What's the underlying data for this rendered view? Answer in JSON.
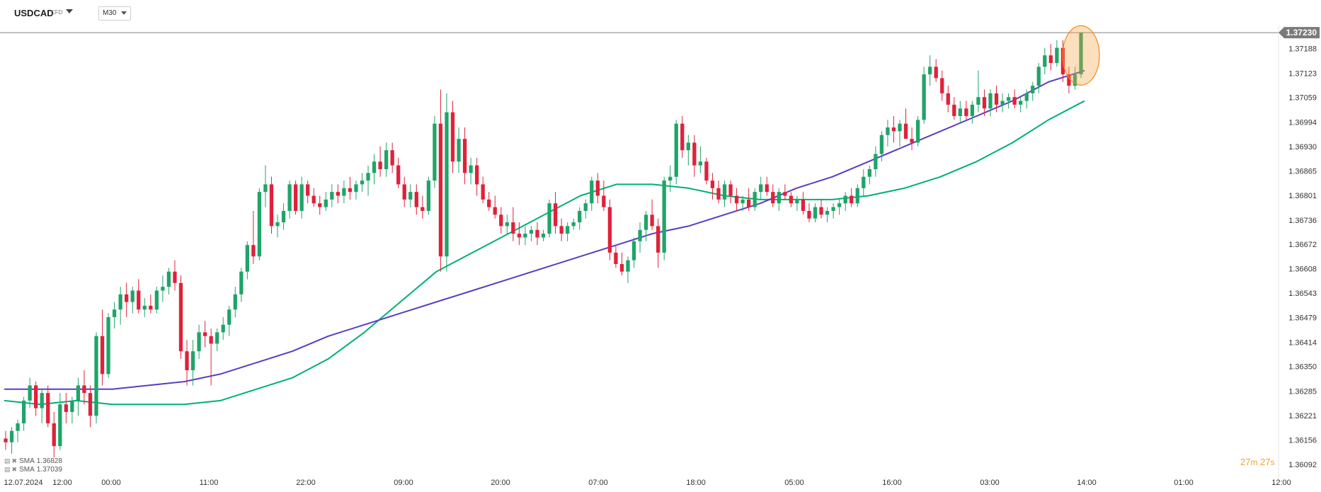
{
  "header": {
    "symbol": "USDCAD",
    "instrument_type": "CFD",
    "timeframe": "M30"
  },
  "current_price_label": "1.37230",
  "indicators": [
    {
      "name": "SMA",
      "value": "1.36828",
      "color": "#00b074"
    },
    {
      "name": "SMA",
      "value": "1.37039",
      "color": "#5b3cc4"
    }
  ],
  "countdown": {
    "minutes": "27",
    "minutes_unit": "m",
    "seconds": "27",
    "seconds_unit": "s"
  },
  "colors": {
    "up": "#1fa469",
    "down": "#e0213a",
    "sma_fast": "#00b074",
    "sma_slow": "#5b3cc4",
    "price_label_bg": "#7a7a7a",
    "highlight": "#f7a440"
  },
  "chart_data": {
    "type": "candlestick",
    "timeframe": "M30",
    "y_ticks": [
      "1.37188",
      "1.37123",
      "1.37059",
      "1.36994",
      "1.36930",
      "1.36865",
      "1.36801",
      "1.36736",
      "1.36672",
      "1.36608",
      "1.36543",
      "1.36479",
      "1.36414",
      "1.36350",
      "1.36285",
      "1.36221",
      "1.36156",
      "1.36092"
    ],
    "x_ticks": [
      "12.07.2024",
      "12:00",
      "00:00",
      "11:00",
      "22:00",
      "09:00",
      "20:00",
      "07:00",
      "18:00",
      "05:00",
      "16:00",
      "03:00",
      "14:00",
      "01:00",
      "12:00"
    ],
    "ylim": [
      1.36075,
      1.3726
    ],
    "current_price": 1.3723,
    "series": [
      {
        "name": "SMA",
        "type": "line",
        "values": [
          1.3626,
          1.3625,
          1.3626,
          1.3625,
          1.3625,
          1.3625,
          1.3626,
          1.3629,
          1.3632,
          1.3637,
          1.3644,
          1.3652,
          1.366,
          1.3665,
          1.367,
          1.3675,
          1.368,
          1.3683,
          1.3683,
          1.3682,
          1.368,
          1.3679,
          1.3679,
          1.3679,
          1.368,
          1.3682,
          1.3685,
          1.3689,
          1.3694,
          1.37,
          1.3705
        ]
      },
      {
        "name": "SMA",
        "type": "line",
        "values": [
          1.3629,
          1.3629,
          1.3629,
          1.3629,
          1.363,
          1.3631,
          1.3633,
          1.3636,
          1.3639,
          1.3643,
          1.3646,
          1.3649,
          1.3652,
          1.3655,
          1.3658,
          1.3661,
          1.3664,
          1.3667,
          1.367,
          1.3672,
          1.3675,
          1.3678,
          1.3682,
          1.3685,
          1.3689,
          1.3693,
          1.3697,
          1.3701,
          1.3705,
          1.371,
          1.3713
        ]
      }
    ],
    "candles": [
      [
        1.3616,
        1.3618,
        1.3613,
        1.3615
      ],
      [
        1.3615,
        1.3619,
        1.3612,
        1.3618
      ],
      [
        1.3618,
        1.3621,
        1.3615,
        1.362
      ],
      [
        1.362,
        1.3627,
        1.3618,
        1.3626
      ],
      [
        1.3626,
        1.3632,
        1.3624,
        1.363
      ],
      [
        1.363,
        1.3631,
        1.3622,
        1.3624
      ],
      [
        1.3624,
        1.3629,
        1.362,
        1.3628
      ],
      [
        1.3628,
        1.363,
        1.3619,
        1.362
      ],
      [
        1.362,
        1.3623,
        1.3611,
        1.3614
      ],
      [
        1.3614,
        1.3628,
        1.3613,
        1.3625
      ],
      [
        1.3625,
        1.3628,
        1.362,
        1.3623
      ],
      [
        1.3623,
        1.3627,
        1.362,
        1.3626
      ],
      [
        1.3626,
        1.3632,
        1.3622,
        1.363
      ],
      [
        1.363,
        1.3634,
        1.3625,
        1.3628
      ],
      [
        1.3628,
        1.363,
        1.3619,
        1.3622
      ],
      [
        1.3622,
        1.3644,
        1.362,
        1.3643
      ],
      [
        1.3643,
        1.365,
        1.363,
        1.3633
      ],
      [
        1.3633,
        1.3649,
        1.3632,
        1.3648
      ],
      [
        1.3648,
        1.3652,
        1.3645,
        1.365
      ],
      [
        1.365,
        1.3656,
        1.3646,
        1.3654
      ],
      [
        1.3654,
        1.3657,
        1.3648,
        1.3652
      ],
      [
        1.3652,
        1.3656,
        1.3649,
        1.3655
      ],
      [
        1.3655,
        1.3658,
        1.3649,
        1.365
      ],
      [
        1.365,
        1.3653,
        1.3648,
        1.3651
      ],
      [
        1.3651,
        1.3654,
        1.3649,
        1.365
      ],
      [
        1.365,
        1.3656,
        1.3649,
        1.3655
      ],
      [
        1.3655,
        1.3659,
        1.3652,
        1.3656
      ],
      [
        1.3656,
        1.3661,
        1.3654,
        1.366
      ],
      [
        1.366,
        1.3663,
        1.3655,
        1.3657
      ],
      [
        1.3657,
        1.3659,
        1.3637,
        1.3639
      ],
      [
        1.3639,
        1.3642,
        1.363,
        1.3634
      ],
      [
        1.3634,
        1.3642,
        1.363,
        1.3639
      ],
      [
        1.3639,
        1.3646,
        1.3637,
        1.3644
      ],
      [
        1.3644,
        1.3647,
        1.364,
        1.3643
      ],
      [
        1.3643,
        1.3645,
        1.363,
        1.3641
      ],
      [
        1.3641,
        1.3645,
        1.3639,
        1.3644
      ],
      [
        1.3644,
        1.3648,
        1.3642,
        1.3646
      ],
      [
        1.3646,
        1.3651,
        1.3643,
        1.365
      ],
      [
        1.365,
        1.3656,
        1.3648,
        1.3654
      ],
      [
        1.3654,
        1.3661,
        1.3652,
        1.366
      ],
      [
        1.366,
        1.3668,
        1.3658,
        1.3667
      ],
      [
        1.3667,
        1.3676,
        1.3662,
        1.3664
      ],
      [
        1.3664,
        1.3682,
        1.3663,
        1.3681
      ],
      [
        1.3681,
        1.3688,
        1.3677,
        1.3683
      ],
      [
        1.3683,
        1.3685,
        1.367,
        1.3672
      ],
      [
        1.3672,
        1.3675,
        1.3669,
        1.3673
      ],
      [
        1.3673,
        1.3678,
        1.3671,
        1.3676
      ],
      [
        1.3676,
        1.3684,
        1.3674,
        1.3683
      ],
      [
        1.3683,
        1.3684,
        1.3675,
        1.3676
      ],
      [
        1.3676,
        1.3685,
        1.3674,
        1.3683
      ],
      [
        1.3683,
        1.3684,
        1.3678,
        1.368
      ],
      [
        1.368,
        1.3682,
        1.3677,
        1.3678
      ],
      [
        1.3678,
        1.368,
        1.3675,
        1.3677
      ],
      [
        1.3677,
        1.3681,
        1.3676,
        1.3679
      ],
      [
        1.3679,
        1.3683,
        1.3677,
        1.3681
      ],
      [
        1.3681,
        1.3683,
        1.3678,
        1.368
      ],
      [
        1.368,
        1.3684,
        1.3678,
        1.3682
      ],
      [
        1.3682,
        1.3685,
        1.3679,
        1.3681
      ],
      [
        1.3681,
        1.3684,
        1.3679,
        1.3683
      ],
      [
        1.3683,
        1.3686,
        1.3681,
        1.3684
      ],
      [
        1.3684,
        1.3688,
        1.368,
        1.3686
      ],
      [
        1.3686,
        1.3691,
        1.3683,
        1.3689
      ],
      [
        1.3689,
        1.3693,
        1.3685,
        1.3687
      ],
      [
        1.3687,
        1.3694,
        1.3685,
        1.3692
      ],
      [
        1.3692,
        1.3694,
        1.3686,
        1.3688
      ],
      [
        1.3688,
        1.369,
        1.3682,
        1.3683
      ],
      [
        1.3683,
        1.3685,
        1.3677,
        1.3679
      ],
      [
        1.3679,
        1.3683,
        1.3677,
        1.3681
      ],
      [
        1.3681,
        1.3683,
        1.3675,
        1.3677
      ],
      [
        1.3677,
        1.368,
        1.3674,
        1.3676
      ],
      [
        1.3676,
        1.3685,
        1.3675,
        1.3684
      ],
      [
        1.3684,
        1.3701,
        1.3682,
        1.3699
      ],
      [
        1.3699,
        1.3708,
        1.366,
        1.3664
      ],
      [
        1.3664,
        1.3707,
        1.366,
        1.3702
      ],
      [
        1.3702,
        1.3705,
        1.3686,
        1.3689
      ],
      [
        1.3689,
        1.3698,
        1.3686,
        1.3695
      ],
      [
        1.3695,
        1.3698,
        1.3683,
        1.3686
      ],
      [
        1.3686,
        1.369,
        1.3683,
        1.3688
      ],
      [
        1.3688,
        1.369,
        1.368,
        1.3683
      ],
      [
        1.3683,
        1.3685,
        1.3678,
        1.3679
      ],
      [
        1.3679,
        1.3681,
        1.3676,
        1.3677
      ],
      [
        1.3677,
        1.368,
        1.3674,
        1.3675
      ],
      [
        1.3675,
        1.3677,
        1.367,
        1.3672
      ],
      [
        1.3672,
        1.3675,
        1.367,
        1.3673
      ],
      [
        1.3673,
        1.3677,
        1.3668,
        1.367
      ],
      [
        1.367,
        1.3673,
        1.3667,
        1.3669
      ],
      [
        1.3669,
        1.3672,
        1.3667,
        1.367
      ],
      [
        1.367,
        1.3672,
        1.3668,
        1.3671
      ],
      [
        1.3671,
        1.3673,
        1.3667,
        1.3669
      ],
      [
        1.3669,
        1.3671,
        1.3668,
        1.367
      ],
      [
        1.367,
        1.3679,
        1.3669,
        1.3678
      ],
      [
        1.3678,
        1.3681,
        1.367,
        1.3672
      ],
      [
        1.3672,
        1.3674,
        1.3668,
        1.367
      ],
      [
        1.367,
        1.3673,
        1.3668,
        1.3672
      ],
      [
        1.3672,
        1.3674,
        1.3671,
        1.3673
      ],
      [
        1.3673,
        1.3677,
        1.3671,
        1.3676
      ],
      [
        1.3676,
        1.3679,
        1.3674,
        1.3678
      ],
      [
        1.3678,
        1.3685,
        1.3676,
        1.3684
      ],
      [
        1.3684,
        1.3686,
        1.3678,
        1.368
      ],
      [
        1.368,
        1.3684,
        1.3676,
        1.3677
      ],
      [
        1.3677,
        1.3679,
        1.3663,
        1.3665
      ],
      [
        1.3665,
        1.3667,
        1.3661,
        1.3662
      ],
      [
        1.3662,
        1.3665,
        1.3659,
        1.366
      ],
      [
        1.366,
        1.3664,
        1.3657,
        1.3663
      ],
      [
        1.3663,
        1.3669,
        1.3661,
        1.3668
      ],
      [
        1.3668,
        1.3673,
        1.3665,
        1.3671
      ],
      [
        1.3671,
        1.3676,
        1.3668,
        1.3675
      ],
      [
        1.3675,
        1.3679,
        1.3671,
        1.3672
      ],
      [
        1.3672,
        1.3674,
        1.3661,
        1.3665
      ],
      [
        1.3665,
        1.3685,
        1.3663,
        1.3684
      ],
      [
        1.3684,
        1.3688,
        1.3681,
        1.3685
      ],
      [
        1.3685,
        1.37,
        1.3683,
        1.3699
      ],
      [
        1.3699,
        1.3701,
        1.369,
        1.3692
      ],
      [
        1.3692,
        1.3696,
        1.3688,
        1.3694
      ],
      [
        1.3694,
        1.3696,
        1.3685,
        1.3688
      ],
      [
        1.3688,
        1.3693,
        1.3686,
        1.3689
      ],
      [
        1.3689,
        1.369,
        1.3683,
        1.3684
      ],
      [
        1.3684,
        1.3686,
        1.3679,
        1.3682
      ],
      [
        1.3682,
        1.3684,
        1.3678,
        1.3679
      ],
      [
        1.3679,
        1.3684,
        1.3677,
        1.3683
      ],
      [
        1.3683,
        1.3684,
        1.3678,
        1.368
      ],
      [
        1.368,
        1.3682,
        1.3676,
        1.3678
      ],
      [
        1.3678,
        1.368,
        1.3676,
        1.3679
      ],
      [
        1.3679,
        1.3682,
        1.3676,
        1.3677
      ],
      [
        1.3677,
        1.3682,
        1.3676,
        1.3681
      ],
      [
        1.3681,
        1.3685,
        1.3679,
        1.3683
      ],
      [
        1.3683,
        1.3685,
        1.368,
        1.3681
      ],
      [
        1.3681,
        1.3683,
        1.3677,
        1.3678
      ],
      [
        1.3678,
        1.3682,
        1.3676,
        1.3681
      ],
      [
        1.3681,
        1.3683,
        1.3679,
        1.368
      ],
      [
        1.368,
        1.3681,
        1.3677,
        1.3678
      ],
      [
        1.3678,
        1.368,
        1.3676,
        1.3679
      ],
      [
        1.3679,
        1.3681,
        1.3675,
        1.3676
      ],
      [
        1.3676,
        1.3678,
        1.3673,
        1.3674
      ],
      [
        1.3674,
        1.3678,
        1.3673,
        1.3677
      ],
      [
        1.3677,
        1.3679,
        1.3674,
        1.3675
      ],
      [
        1.3675,
        1.3677,
        1.3673,
        1.3676
      ],
      [
        1.3676,
        1.3678,
        1.3674,
        1.3677
      ],
      [
        1.3677,
        1.3679,
        1.3675,
        1.3678
      ],
      [
        1.3678,
        1.3681,
        1.3676,
        1.368
      ],
      [
        1.368,
        1.3682,
        1.3677,
        1.3678
      ],
      [
        1.3678,
        1.3683,
        1.3677,
        1.3682
      ],
      [
        1.3682,
        1.3687,
        1.368,
        1.3685
      ],
      [
        1.3685,
        1.3688,
        1.3683,
        1.3687
      ],
      [
        1.3687,
        1.3693,
        1.3685,
        1.3691
      ],
      [
        1.3691,
        1.3697,
        1.3689,
        1.3696
      ],
      [
        1.3696,
        1.37,
        1.3693,
        1.3698
      ],
      [
        1.3698,
        1.3701,
        1.3694,
        1.3697
      ],
      [
        1.3697,
        1.37,
        1.3693,
        1.3699
      ],
      [
        1.3699,
        1.3703,
        1.3696,
        1.3695
      ],
      [
        1.3695,
        1.3698,
        1.3692,
        1.3694
      ],
      [
        1.3694,
        1.3701,
        1.3693,
        1.37
      ],
      [
        1.37,
        1.3714,
        1.3699,
        1.3712
      ],
      [
        1.3712,
        1.3717,
        1.3709,
        1.3714
      ],
      [
        1.3714,
        1.3716,
        1.371,
        1.3711
      ],
      [
        1.3711,
        1.3713,
        1.3705,
        1.3707
      ],
      [
        1.3707,
        1.3709,
        1.3702,
        1.3704
      ],
      [
        1.3704,
        1.3706,
        1.37,
        1.3701
      ],
      [
        1.3701,
        1.3705,
        1.3699,
        1.3703
      ],
      [
        1.3703,
        1.3705,
        1.37,
        1.3701
      ],
      [
        1.3701,
        1.3705,
        1.3699,
        1.3704
      ],
      [
        1.3704,
        1.3713,
        1.3702,
        1.3706
      ],
      [
        1.3706,
        1.3708,
        1.3701,
        1.3703
      ],
      [
        1.3703,
        1.3708,
        1.3701,
        1.3707
      ],
      [
        1.3707,
        1.3709,
        1.3702,
        1.3704
      ],
      [
        1.3704,
        1.3707,
        1.3702,
        1.3705
      ],
      [
        1.3705,
        1.3707,
        1.3703,
        1.3706
      ],
      [
        1.3706,
        1.3708,
        1.3703,
        1.3704
      ],
      [
        1.3704,
        1.3706,
        1.3702,
        1.3705
      ],
      [
        1.3705,
        1.3708,
        1.3703,
        1.3707
      ],
      [
        1.3707,
        1.371,
        1.3705,
        1.3709
      ],
      [
        1.3709,
        1.3715,
        1.3707,
        1.3714
      ],
      [
        1.3714,
        1.3719,
        1.3712,
        1.3717
      ],
      [
        1.3717,
        1.372,
        1.3713,
        1.3715
      ],
      [
        1.3715,
        1.3721,
        1.3714,
        1.3719
      ],
      [
        1.3719,
        1.3721,
        1.371,
        1.3712
      ],
      [
        1.3712,
        1.3714,
        1.3707,
        1.3709
      ],
      [
        1.3709,
        1.3714,
        1.3708,
        1.3712
      ],
      [
        1.3712,
        1.3723,
        1.3711,
        1.3723
      ]
    ]
  }
}
